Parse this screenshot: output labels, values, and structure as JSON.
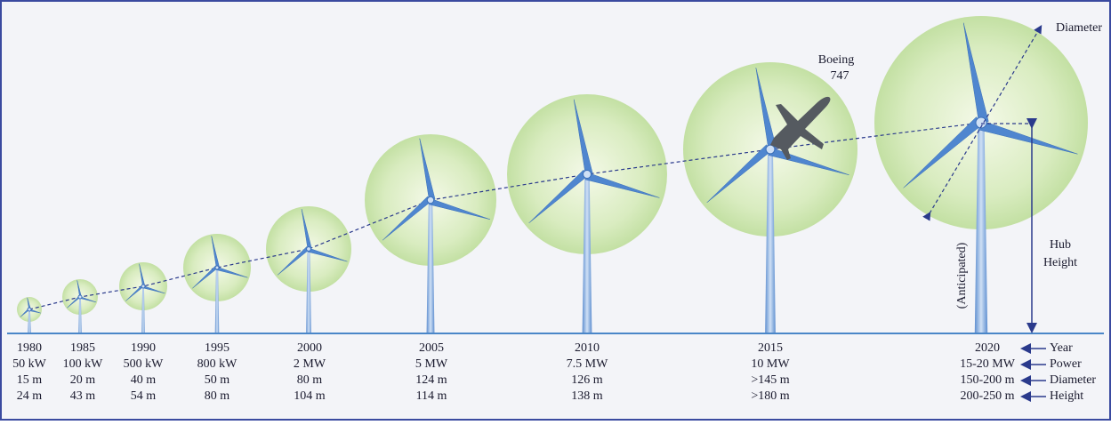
{
  "turbines": [
    {
      "year": "1980",
      "power": "50 kW",
      "diameter": "15 m",
      "height": "24 m"
    },
    {
      "year": "1985",
      "power": "100 kW",
      "diameter": "20 m",
      "height": "43 m"
    },
    {
      "year": "1990",
      "power": "500 kW",
      "diameter": "40 m",
      "height": "54 m"
    },
    {
      "year": "1995",
      "power": "800 kW",
      "diameter": "50 m",
      "height": "80 m"
    },
    {
      "year": "2000",
      "power": "2 MW",
      "diameter": "80 m",
      "height": "104 m"
    },
    {
      "year": "2005",
      "power": "5 MW",
      "diameter": "124 m",
      "height": "114 m"
    },
    {
      "year": "2010",
      "power": "7.5 MW",
      "diameter": "126 m",
      "height": "138 m"
    },
    {
      "year": "2015",
      "power": "10 MW",
      "diameter": ">145 m",
      "height": ">180 m"
    },
    {
      "year": "2020",
      "power": "15-20 MW",
      "diameter": "150-200 m",
      "height": "200-250 m"
    }
  ],
  "legend": [
    "Year",
    "Power",
    "Diameter",
    "Height"
  ],
  "labels": {
    "diameter": "Diameter",
    "boeing": [
      "Boeing",
      "747"
    ],
    "hub_height": [
      "Hub",
      "Height"
    ],
    "anticipated": "(Anticipated)"
  }
}
